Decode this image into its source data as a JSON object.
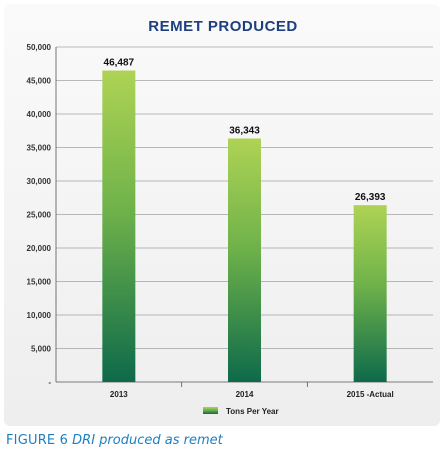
{
  "chart_data": {
    "type": "bar",
    "title": "REMET PRODUCED",
    "categories": [
      "2013",
      "2014",
      "2015 -Actual"
    ],
    "series": [
      {
        "name": "Tons Per Year",
        "values": [
          46487,
          36343,
          26393
        ]
      }
    ],
    "value_labels": [
      "46,487",
      "36,343",
      "26,393"
    ],
    "y_ticks": [
      "50,000",
      "45,000",
      "40,000",
      "35,000",
      "30,000",
      "25,000",
      "20,000",
      "15,000",
      "10,000",
      "5,000",
      "-"
    ],
    "ylim": [
      0,
      50000
    ],
    "grid": "horizontal",
    "legend_position": "bottom-center",
    "colors": {
      "bar_top": "#aed354",
      "bar_bottom": "#0d6a4a",
      "title": "#1d3f7d",
      "caption": "#1e7fc0"
    }
  },
  "caption": {
    "label": "FIGURE 6",
    "text": "DRI produced as remet"
  }
}
